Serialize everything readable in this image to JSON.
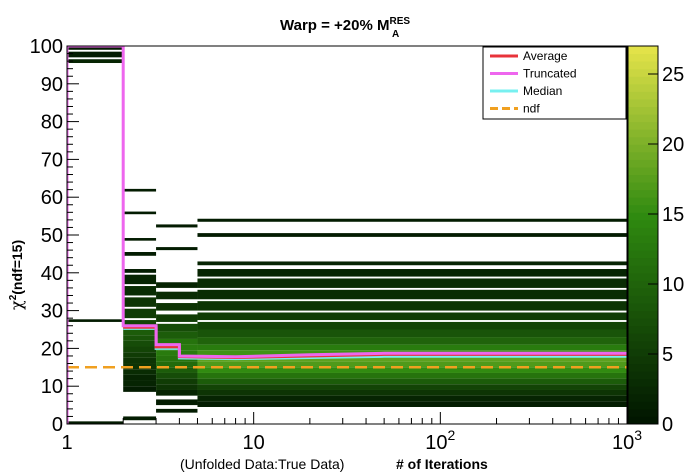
{
  "chart_data": {
    "type": "heatmap",
    "title": {
      "main": "Warp = +20% M",
      "sup": "RES",
      "sub": "A"
    },
    "xlabel": {
      "note": "(Unfolded Data:True Data)",
      "main": "# of Iterations"
    },
    "ylabel": {
      "chi": "χ",
      "sup": "2",
      "rest": "(ndf=15)"
    },
    "x_scale": "log",
    "xlim": [
      1,
      1000
    ],
    "ylim": [
      0,
      100
    ],
    "x_ticks": [
      {
        "value": 1,
        "base": "1",
        "exp": ""
      },
      {
        "value": 10,
        "base": "10",
        "exp": ""
      },
      {
        "value": 100,
        "base": "10",
        "exp": "2"
      },
      {
        "value": 1000,
        "base": "10",
        "exp": "3"
      }
    ],
    "y_ticks": [
      "0",
      "10",
      "20",
      "30",
      "40",
      "50",
      "60",
      "70",
      "80",
      "90",
      "100"
    ],
    "colorbar": {
      "range": [
        0,
        27
      ],
      "ticks": [
        "0",
        "5",
        "10",
        "15",
        "20",
        "25"
      ],
      "low_color": "#001400",
      "mid_color": "#2f8a10",
      "high_color": "#e6e44a"
    },
    "legend": {
      "position": "top-right",
      "entries": [
        {
          "name": "Average",
          "color": "#e8333a",
          "style": "solid"
        },
        {
          "name": "Truncated",
          "color": "#ee66ee",
          "style": "solid"
        },
        {
          "name": "Median",
          "color": "#77f0f0",
          "style": "solid"
        },
        {
          "name": "ndf",
          "color": "#f0a020",
          "style": "dashed"
        }
      ]
    },
    "series": [
      {
        "name": "Truncated",
        "x": [
          1,
          1,
          2,
          2,
          3,
          3,
          4,
          4,
          8,
          20,
          50,
          1000
        ],
        "y": [
          0,
          100,
          100,
          26,
          26,
          21,
          21,
          18,
          17.8,
          18.3,
          18.7,
          18.7
        ]
      },
      {
        "name": "Median",
        "x": [
          2,
          3,
          3,
          4,
          4,
          8,
          20,
          50,
          1000
        ],
        "y": [
          25.3,
          25.3,
          20,
          20,
          17.5,
          17.3,
          17.6,
          17.9,
          17.9
        ]
      },
      {
        "name": "Average",
        "x": [
          2,
          3,
          3,
          4,
          4,
          8,
          20,
          50,
          1000
        ],
        "y": [
          25.6,
          25.6,
          20.4,
          20.4,
          17.8,
          17.6,
          18,
          18.4,
          18.4
        ]
      },
      {
        "name": "ndf",
        "x": [
          1,
          1000
        ],
        "y": [
          15,
          15
        ]
      }
    ],
    "heatmap_columns": [
      {
        "x0": 1,
        "x1": 2,
        "bands": [
          [
            95.5,
            96.5,
            2
          ],
          [
            97,
            98.5,
            1
          ],
          [
            99,
            99.8,
            1
          ],
          [
            27,
            27.7,
            1
          ],
          [
            0,
            0.7,
            1
          ]
        ]
      },
      {
        "x0": 2,
        "x1": 3,
        "bands": [
          [
            61.5,
            62.2,
            1
          ],
          [
            55.5,
            56.2,
            1
          ],
          [
            48.5,
            49.2,
            1
          ],
          [
            44.5,
            45.5,
            1
          ],
          [
            40,
            41,
            1
          ],
          [
            37,
            39.5,
            2
          ],
          [
            34,
            36.5,
            3
          ],
          [
            31,
            33.5,
            4
          ],
          [
            28,
            30.5,
            5
          ],
          [
            26,
            27.5,
            6
          ],
          [
            25,
            26,
            7
          ],
          [
            23.5,
            25,
            9
          ],
          [
            22,
            23.5,
            8
          ],
          [
            20.5,
            22,
            7
          ],
          [
            19,
            20.5,
            6
          ],
          [
            17.5,
            19,
            5
          ],
          [
            16,
            17.5,
            4
          ],
          [
            14.5,
            16,
            4
          ],
          [
            13,
            14.5,
            3
          ],
          [
            11.5,
            13,
            2
          ],
          [
            10,
            11.5,
            2
          ],
          [
            8.5,
            10,
            1
          ],
          [
            1,
            2,
            1
          ]
        ]
      },
      {
        "x0": 3,
        "x1": 5,
        "bands": [
          [
            52,
            52.8,
            1
          ],
          [
            46,
            46.8,
            1
          ],
          [
            36,
            37.5,
            2
          ],
          [
            33,
            35,
            3
          ],
          [
            30,
            32,
            4
          ],
          [
            27,
            29,
            5
          ],
          [
            24.5,
            26.5,
            7
          ],
          [
            22.5,
            24.5,
            9
          ],
          [
            21,
            22.5,
            12
          ],
          [
            19.5,
            21,
            13
          ],
          [
            18,
            19.5,
            13
          ],
          [
            16.5,
            18,
            12
          ],
          [
            15,
            16.5,
            11
          ],
          [
            13.5,
            15,
            9
          ],
          [
            12,
            13.5,
            7
          ],
          [
            10.5,
            12,
            5
          ],
          [
            9,
            10.5,
            4
          ],
          [
            7.5,
            9,
            2
          ],
          [
            5,
            6.5,
            1
          ],
          [
            3,
            4,
            1
          ]
        ]
      },
      {
        "x0": 5,
        "x1": 1000,
        "bands": [
          [
            53.5,
            54.3,
            1
          ],
          [
            49.5,
            50.5,
            1
          ],
          [
            42,
            43,
            2
          ],
          [
            39,
            41,
            2
          ],
          [
            36,
            38.5,
            3
          ],
          [
            33,
            35.5,
            3
          ],
          [
            30,
            32.5,
            4
          ],
          [
            27.5,
            29.5,
            5
          ],
          [
            25,
            27,
            6
          ],
          [
            23,
            25,
            8
          ],
          [
            21,
            23,
            10
          ],
          [
            19.5,
            21,
            13
          ],
          [
            18,
            19.5,
            16
          ],
          [
            16.5,
            18,
            18
          ],
          [
            15,
            16.5,
            17
          ],
          [
            13.5,
            15,
            15
          ],
          [
            12,
            13.5,
            12
          ],
          [
            10.5,
            12,
            9
          ],
          [
            9,
            10.5,
            6
          ],
          [
            7.5,
            9,
            4
          ],
          [
            6,
            7.5,
            2
          ],
          [
            4.5,
            6,
            1
          ]
        ]
      }
    ]
  }
}
